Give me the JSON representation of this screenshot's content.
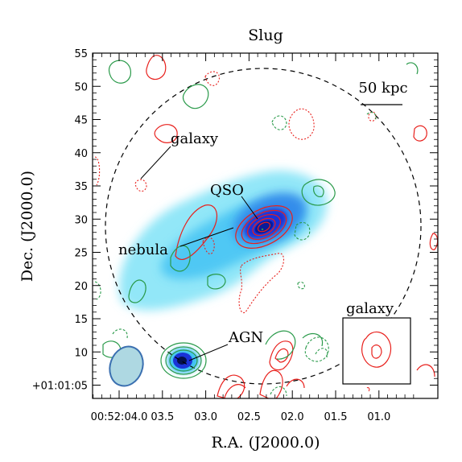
{
  "chart_data": {
    "type": "contour-map",
    "title": "Slug",
    "xlabel": "R.A. (J2000.0)",
    "ylabel": "Dec. (J2000.0)",
    "x_ticks": [
      "00:52:04.0",
      "03.5",
      "03.0",
      "02.5",
      "02.0",
      "01.5",
      "01.0"
    ],
    "y_ticks": [
      "+01:01:05",
      "10",
      "15",
      "20",
      "25",
      "30",
      "35",
      "40",
      "45",
      "50",
      "55"
    ],
    "y_tick_values": [
      5,
      10,
      15,
      20,
      25,
      30,
      35,
      40,
      45,
      50,
      55
    ],
    "ylim": [
      3,
      55
    ],
    "scale_bar_label": "50 kpc",
    "annotations": [
      {
        "key": "galaxy",
        "label": "galaxy"
      },
      {
        "key": "qso",
        "label": "QSO"
      },
      {
        "key": "nebula",
        "label": "nebula"
      },
      {
        "key": "agn",
        "label": "AGN"
      }
    ],
    "inset_label": "galaxy",
    "colors": {
      "red_contour": "#e8201c",
      "green_contour": "#2a9a4a",
      "nebula_light": "#7fe3f7",
      "nebula_mid": "#2aa8f0",
      "nebula_dark": "#1a33d6",
      "beam_fill": "#aed8e2",
      "beam_edge": "#3a6fb0"
    }
  }
}
